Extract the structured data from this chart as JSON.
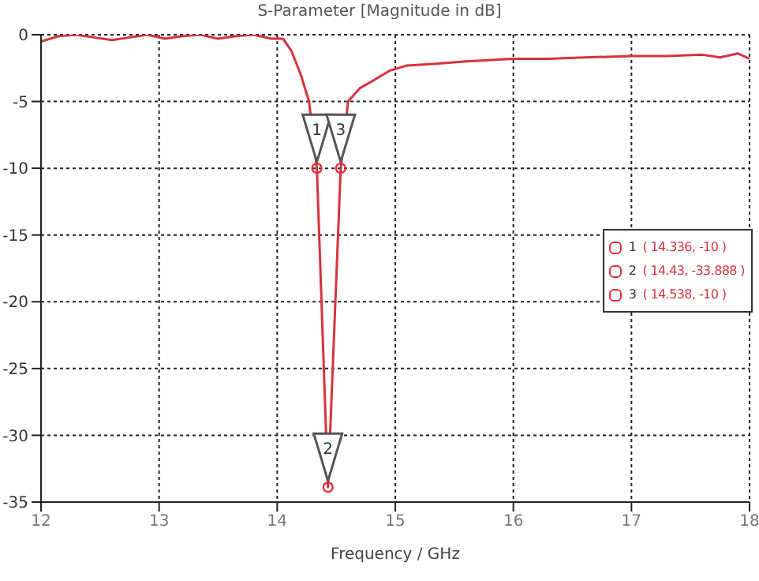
{
  "chart_data": {
    "type": "line",
    "title": "S-Parameter [Magnitude in dB]",
    "xlabel": "Frequency / GHz",
    "x": [
      12,
      12.15,
      12.3,
      12.45,
      12.6,
      12.75,
      12.9,
      13.05,
      13.2,
      13.35,
      13.5,
      13.65,
      13.8,
      13.95,
      14.05,
      14.12,
      14.2,
      14.27,
      14.336,
      14.43,
      14.538,
      14.6,
      14.7,
      14.8,
      14.95,
      15.1,
      15.3,
      15.6,
      16,
      16.3,
      16.6,
      17,
      17.3,
      17.6,
      17.75,
      17.9,
      18
    ],
    "series": [
      {
        "color": "#d8323c",
        "values": [
          -0.5,
          -0.1,
          0,
          -0.2,
          -0.4,
          -0.2,
          0,
          -0.3,
          -0.1,
          0,
          -0.3,
          -0.1,
          0,
          -0.3,
          -0.3,
          -1.2,
          -3,
          -5,
          -10,
          -33.888,
          -10,
          -5,
          -4,
          -3.5,
          -2.7,
          -2.3,
          -2.2,
          -2,
          -1.8,
          -1.8,
          -1.7,
          -1.6,
          -1.6,
          -1.5,
          -1.7,
          -1.4,
          -1.8
        ]
      }
    ],
    "xlim": [
      12,
      18
    ],
    "xticks": [
      12,
      13,
      14,
      15,
      16,
      17,
      18
    ],
    "ylim": [
      -35,
      0
    ],
    "yticks": [
      -35,
      -30,
      -25,
      -20,
      -15,
      -10,
      -5,
      0
    ],
    "grid": true,
    "marker": "none",
    "line_style": "solid",
    "annotations": [
      {
        "text": "1",
        "x": 14.336,
        "y": -10
      },
      {
        "text": "2",
        "x": 14.43,
        "y": -33.888
      },
      {
        "text": "3",
        "x": 14.538,
        "y": -10
      },
      "( 14.336, -10 )",
      "( 14.43, -33.888 )",
      "( 14.538, -10 )"
    ]
  }
}
